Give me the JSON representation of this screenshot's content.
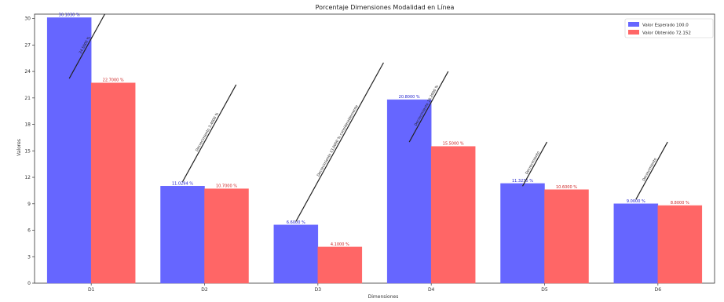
{
  "chart_data": {
    "type": "bar",
    "title": "Porcentaje Dimensiones Modalidad en Línea",
    "xlabel": "Dimensiones",
    "ylabel": "Valores",
    "categories": [
      "D1",
      "D2",
      "D3",
      "D4",
      "D5",
      "D6"
    ],
    "ylim": [
      0,
      30.5
    ],
    "yticks": [
      0,
      3,
      6,
      9,
      12,
      15,
      18,
      21,
      24,
      27,
      30
    ],
    "grid": false,
    "legend_position": "top-right",
    "series": [
      {
        "name": "Valor Esperado 100.0",
        "color": "#6666ff",
        "values": [
          30.1,
          11.0,
          6.6,
          20.8,
          11.3,
          9.0
        ],
        "labels": [
          "30.1030 %",
          "11.0294 %",
          "6.6000 %",
          "20.8000 %",
          "11.3235 %",
          "9.0000 %"
        ]
      },
      {
        "name": "Valor Obtenido 72.152",
        "color": "#ff6666",
        "values": [
          22.7,
          10.7,
          4.1,
          15.5,
          10.6,
          8.8
        ],
        "labels": [
          "22.7000 %",
          "10.7000 %",
          "4.1000 %",
          "15.5000 %",
          "10.6000 %",
          "8.8000 %"
        ]
      }
    ],
    "annotations": [
      {
        "category": "D1",
        "text": "24.5000 %",
        "y_start": 23.2,
        "y_end": 30.5
      },
      {
        "category": "D2",
        "text": "Decrecimiento 3.4000 %",
        "y_start": 11.5,
        "y_end": 22.5
      },
      {
        "category": "D3",
        "text": "Decrecimiento 13.0000 % considerablemente",
        "y_start": 7.0,
        "y_end": 25.0
      },
      {
        "category": "D4",
        "text": "Decrecimiento 26.2000 %",
        "y_start": 16.0,
        "y_end": 24.0
      },
      {
        "category": "D5",
        "text": "Decrecimiento",
        "y_start": 11.0,
        "y_end": 16.0
      },
      {
        "category": "D6",
        "text": "Decrecimiento",
        "y_start": 9.5,
        "y_end": 16.0
      }
    ]
  }
}
